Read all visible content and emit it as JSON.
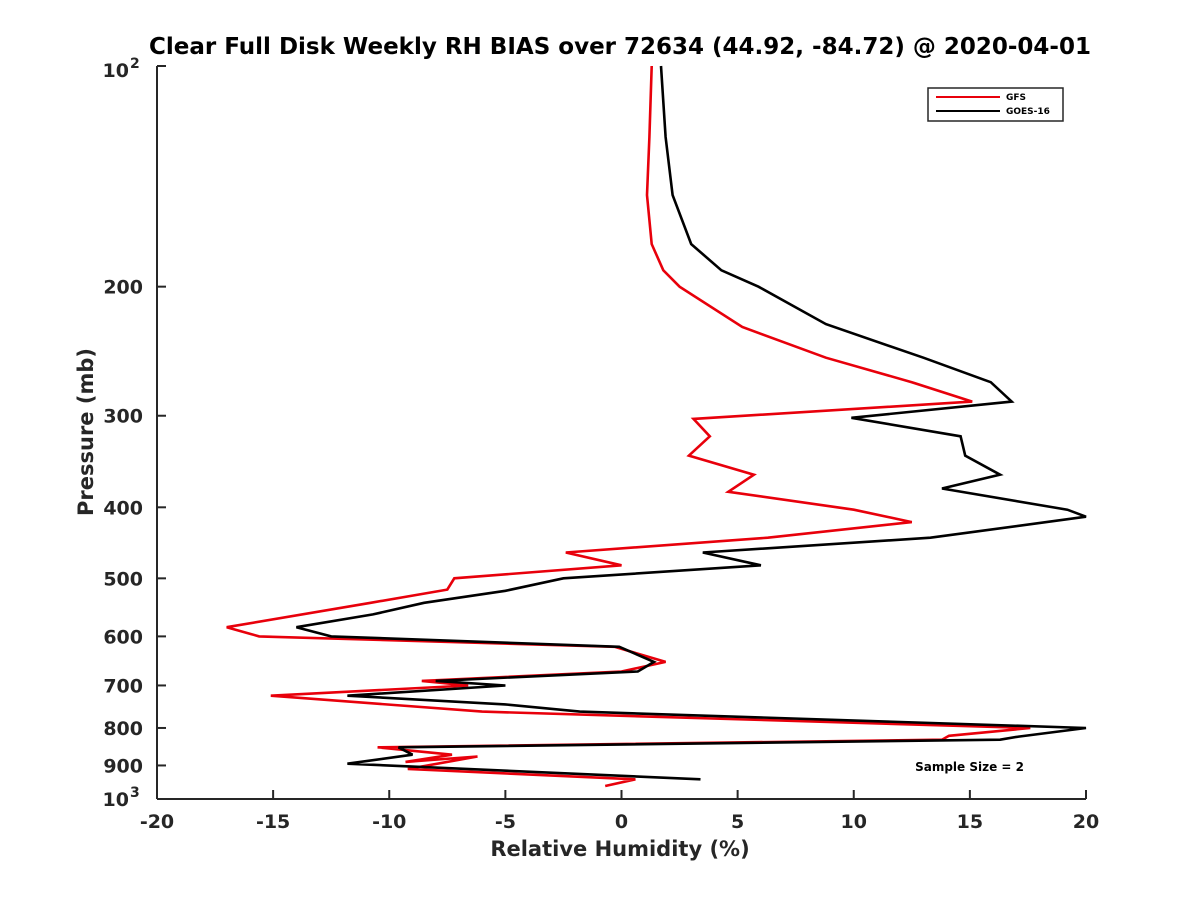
{
  "chart_data": {
    "type": "line",
    "title": "Clear Full Disk Weekly RH BIAS over 72634 (44.92, -84.72) @ 2020-04-01",
    "xlabel": "Relative Humidity (%)",
    "ylabel": "Pressure (mb)",
    "xlim": [
      -20,
      20
    ],
    "ylim": [
      100,
      1000
    ],
    "yscale": "log",
    "yreversed": true,
    "grid": false,
    "legend_position": "top-right",
    "x_ticks": [
      {
        "value": -20,
        "label": "-20"
      },
      {
        "value": -15,
        "label": "-15"
      },
      {
        "value": -10,
        "label": "-10"
      },
      {
        "value": -5,
        "label": "-5"
      },
      {
        "value": 0,
        "label": "0"
      },
      {
        "value": 5,
        "label": "5"
      },
      {
        "value": 10,
        "label": "10"
      },
      {
        "value": 15,
        "label": "15"
      },
      {
        "value": 20,
        "label": "20"
      }
    ],
    "y_ticks": [
      {
        "value": 200,
        "label": "200"
      },
      {
        "value": 300,
        "label": "300"
      },
      {
        "value": 400,
        "label": "400"
      },
      {
        "value": 500,
        "label": "500"
      },
      {
        "value": 600,
        "label": "600"
      },
      {
        "value": 700,
        "label": "700"
      },
      {
        "value": 800,
        "label": "800"
      },
      {
        "value": 900,
        "label": "900"
      }
    ],
    "y_tick_exp": [
      {
        "value": 100,
        "base": "10",
        "exp": "2"
      },
      {
        "value": 1000,
        "base": "10",
        "exp": "3"
      }
    ],
    "series": [
      {
        "name": "GFS",
        "color": "#e8000b",
        "points": [
          [
            1.3,
            100
          ],
          [
            1.2,
            125
          ],
          [
            1.1,
            150
          ],
          [
            1.3,
            175
          ],
          [
            1.8,
            190
          ],
          [
            2.5,
            200
          ],
          [
            5.2,
            227
          ],
          [
            8.8,
            250
          ],
          [
            12.5,
            270
          ],
          [
            15.1,
            287
          ],
          [
            3.1,
            303
          ],
          [
            3.8,
            320
          ],
          [
            2.9,
            340
          ],
          [
            5.7,
            361
          ],
          [
            4.6,
            381
          ],
          [
            10.0,
            403
          ],
          [
            12.5,
            419
          ],
          [
            6.3,
            440
          ],
          [
            -2.4,
            461
          ],
          [
            0.0,
            480
          ],
          [
            -7.2,
            500
          ],
          [
            -7.5,
            518
          ],
          [
            -10.8,
            540
          ],
          [
            -17.0,
            583
          ],
          [
            -15.6,
            600
          ],
          [
            -0.3,
            620
          ],
          [
            1.9,
            650
          ],
          [
            0.0,
            670
          ],
          [
            -8.6,
            690
          ],
          [
            -6.6,
            700
          ],
          [
            -15.1,
            723
          ],
          [
            -6.0,
            760
          ],
          [
            17.6,
            800
          ],
          [
            14.1,
            820
          ],
          [
            13.8,
            830
          ],
          [
            -10.5,
            850
          ],
          [
            -7.3,
            870
          ],
          [
            -9.3,
            890
          ],
          [
            -6.2,
            875
          ],
          [
            -9.2,
            910
          ],
          [
            0.6,
            940
          ],
          [
            -0.7,
            960
          ]
        ]
      },
      {
        "name": "GOES-16",
        "color": "#000000",
        "points": [
          [
            1.7,
            100
          ],
          [
            1.9,
            125
          ],
          [
            2.2,
            150
          ],
          [
            3.0,
            175
          ],
          [
            4.3,
            190
          ],
          [
            5.9,
            200
          ],
          [
            8.8,
            225
          ],
          [
            13.0,
            250
          ],
          [
            15.9,
            270
          ],
          [
            16.8,
            287
          ],
          [
            9.9,
            302
          ],
          [
            14.6,
            320
          ],
          [
            14.8,
            340
          ],
          [
            16.3,
            361
          ],
          [
            13.8,
            377
          ],
          [
            19.2,
            403
          ],
          [
            20.0,
            412
          ],
          [
            13.3,
            440
          ],
          [
            3.5,
            461
          ],
          [
            6.0,
            480
          ],
          [
            -2.5,
            500
          ],
          [
            -5.0,
            520
          ],
          [
            -8.5,
            540
          ],
          [
            -10.7,
            560
          ],
          [
            -14.0,
            583
          ],
          [
            -12.5,
            600
          ],
          [
            -0.1,
            620
          ],
          [
            1.4,
            650
          ],
          [
            0.7,
            670
          ],
          [
            -8.0,
            690
          ],
          [
            -5.0,
            700
          ],
          [
            -11.8,
            723
          ],
          [
            -5.0,
            743
          ],
          [
            -1.8,
            760
          ],
          [
            20.0,
            800
          ],
          [
            17.1,
            822
          ],
          [
            16.3,
            830
          ],
          [
            -9.6,
            850
          ],
          [
            -9.0,
            870
          ],
          [
            -11.8,
            895
          ],
          [
            3.4,
            940
          ]
        ]
      }
    ],
    "annotations": [
      {
        "text": "Sample Size = 2",
        "anchor": "bottom-right"
      }
    ]
  }
}
